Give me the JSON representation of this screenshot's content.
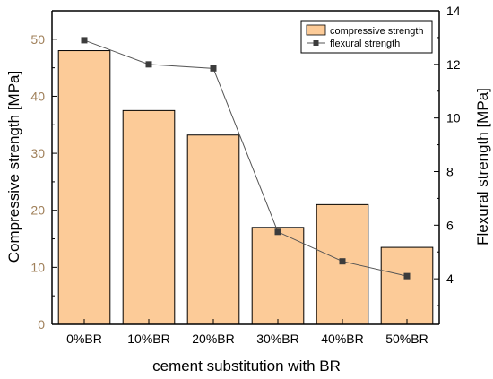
{
  "colors": {
    "bar_fill": "#FCCB98",
    "bar_stroke": "#000000",
    "left_axis_tick_label": "#A0805A",
    "line": "#555555",
    "marker": "#3C3C3C",
    "axis": "#000000"
  },
  "chart_data": {
    "type": "bar+line",
    "categories": [
      "0%BR",
      "10%BR",
      "20%BR",
      "30%BR",
      "40%BR",
      "50%BR"
    ],
    "xlabel": "cement substitution with BR",
    "y_left": {
      "label": "Compressive strength [MPa]",
      "lim": [
        0,
        55
      ],
      "ticks": [
        0,
        10,
        20,
        30,
        40,
        50
      ]
    },
    "y_right": {
      "label": "Flexural strength [MPa]",
      "lim": [
        2.3,
        14
      ],
      "ticks": [
        4,
        6,
        8,
        10,
        12,
        14
      ]
    },
    "series": [
      {
        "name": "compressive strength",
        "type": "bar",
        "axis": "left",
        "values": [
          48.0,
          37.5,
          33.2,
          17.0,
          21.0,
          13.5
        ]
      },
      {
        "name": "flexural strength",
        "type": "line",
        "axis": "right",
        "marker": "square",
        "values": [
          12.9,
          12.0,
          11.85,
          5.75,
          4.65,
          4.1
        ]
      }
    ],
    "legend": {
      "position": "top-right"
    },
    "grid": false
  }
}
